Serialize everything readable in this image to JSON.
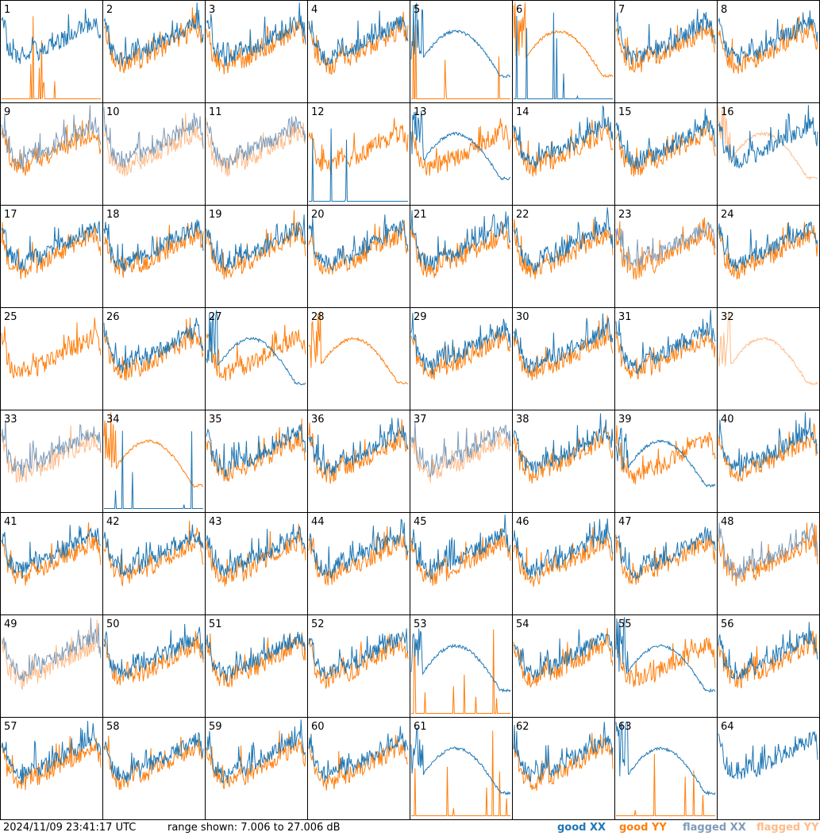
{
  "chart_data": {
    "type": "line",
    "layout": "grid of 64 small-multiple spectrum panels",
    "panel_labels": [
      "1",
      "2",
      "3",
      "4",
      "5",
      "6",
      "7",
      "8",
      "9",
      "10",
      "11",
      "12",
      "13",
      "14",
      "15",
      "16",
      "17",
      "18",
      "19",
      "20",
      "21",
      "22",
      "23",
      "24",
      "25",
      "26",
      "27",
      "28",
      "29",
      "30",
      "31",
      "32",
      "33",
      "34",
      "35",
      "36",
      "37",
      "38",
      "39",
      "40",
      "41",
      "42",
      "43",
      "44",
      "45",
      "46",
      "47",
      "48",
      "49",
      "50",
      "51",
      "52",
      "53",
      "54",
      "55",
      "56",
      "57",
      "58",
      "59",
      "60",
      "61",
      "62",
      "63",
      "64"
    ],
    "y_range_db": [
      7.006,
      27.006
    ],
    "colors": {
      "good_xx": "#1f77b4",
      "good_yy": "#ff7f0e",
      "flagged_xx": "#7f9bb8",
      "flagged_yy": "#ffbb88",
      "panel_border": "#000000"
    },
    "series_names": [
      "good XX",
      "good YY",
      "flagged XX",
      "flagged YY"
    ],
    "panel_series_state": {
      "xx_flagged": [
        9,
        10,
        11,
        23,
        33,
        37,
        48,
        49
      ],
      "yy_flagged": [
        10,
        11,
        16,
        32,
        33,
        37,
        49
      ],
      "xx_anomalous": [
        5,
        6,
        12,
        13,
        27,
        34,
        39,
        53,
        55,
        61,
        63
      ],
      "yy_anomalous": [
        1,
        5,
        6,
        16,
        28,
        32,
        34,
        53,
        61,
        63
      ],
      "xx_absent": [
        25,
        28,
        32
      ],
      "yy_absent": [
        64
      ]
    },
    "grid_lines": false
  },
  "footer": {
    "timestamp": "2024/11/09 23:41:17 UTC",
    "range_text": "range shown: 7.006 to 27.006 dB",
    "legend": {
      "good_xx": "good XX",
      "good_yy": "good YY",
      "flagged_xx": "flagged XX",
      "flagged_yy": "flagged YY"
    }
  }
}
